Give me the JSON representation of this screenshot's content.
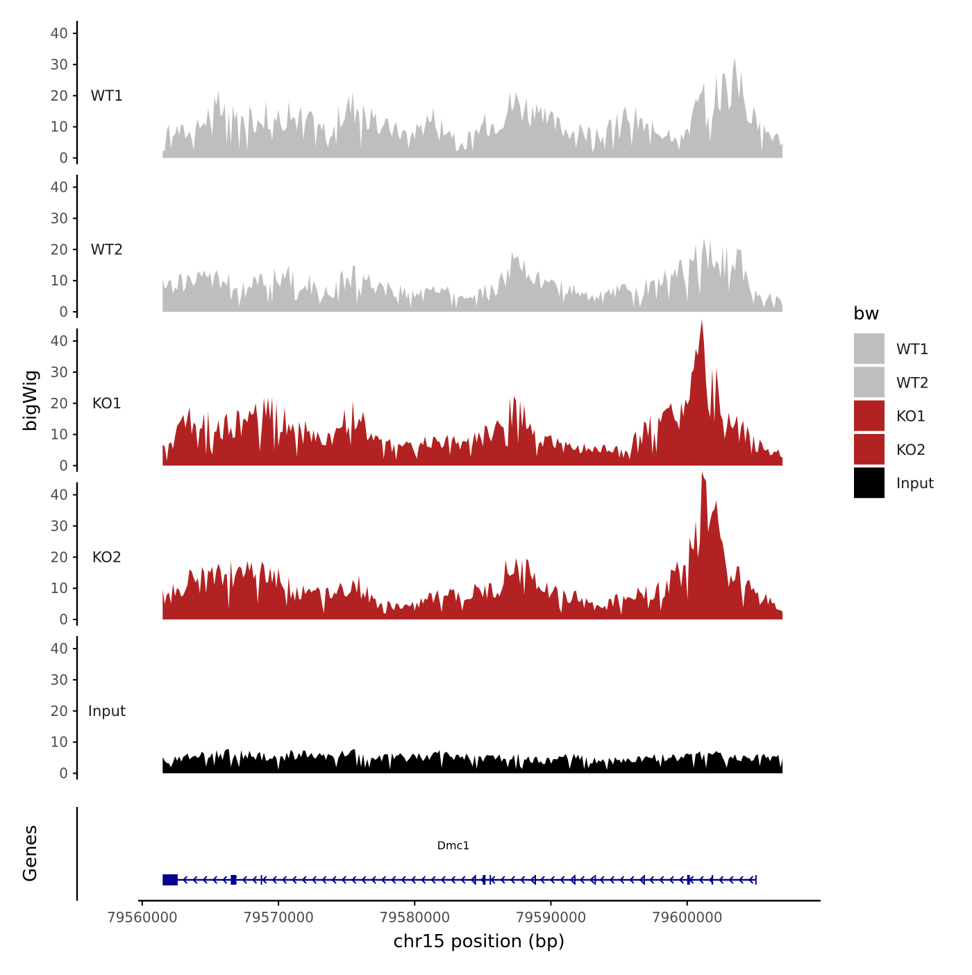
{
  "chart_data": {
    "type": "area",
    "title": "",
    "ylabel": "bigWig",
    "xlabel": "chr15 position (bp)",
    "xlim": [
      79559700,
      79609800
    ],
    "ylim": [
      0,
      42
    ],
    "y_ticks": [
      0,
      10,
      20,
      30,
      40
    ],
    "y_tick_labels": [
      "0",
      "10",
      "20",
      "30",
      "40"
    ],
    "x_ticks": [
      79560000,
      79570000,
      79580000,
      79590000,
      79600000
    ],
    "x_tick_labels": [
      "79560000",
      "79570000",
      "79580000",
      "79590000",
      "79600000"
    ],
    "x_positions": [
      79561500,
      79563500,
      79565500,
      79567500,
      79569500,
      79571500,
      79573500,
      79575500,
      79577500,
      79579500,
      79581500,
      79583500,
      79585500,
      79587500,
      79589500,
      79591500,
      79593500,
      79595500,
      79597500,
      79599500,
      79601500,
      79603500,
      79605500,
      79607000
    ],
    "legend": {
      "title": "bw",
      "position": "right",
      "entries": [
        {
          "label": "WT1",
          "color": "#bebebe"
        },
        {
          "label": "WT2",
          "color": "#bebebe"
        },
        {
          "label": "KO1",
          "color": "#b22222"
        },
        {
          "label": "KO2",
          "color": "#b22222"
        },
        {
          "label": "Input",
          "color": "#000000"
        }
      ]
    },
    "series": [
      {
        "name": "WT1",
        "color": "#bebebe",
        "values": [
          10,
          8,
          16,
          12,
          14,
          13,
          9,
          17,
          10,
          8,
          13,
          6,
          11,
          18,
          12,
          9,
          7,
          14,
          9,
          8,
          20,
          24,
          9,
          6
        ]
      },
      {
        "name": "WT2",
        "color": "#bebebe",
        "values": [
          8,
          10,
          11,
          7,
          13,
          10,
          6,
          12,
          8,
          6,
          7,
          5,
          7,
          15,
          9,
          7,
          5,
          7,
          8,
          13,
          18,
          16,
          5,
          4
        ]
      },
      {
        "name": "KO1",
        "color": "#b22222",
        "values": [
          5,
          15,
          12,
          14,
          17,
          11,
          8,
          16,
          7,
          6,
          8,
          7,
          10,
          17,
          8,
          6,
          5,
          6,
          13,
          16,
          38,
          12,
          6,
          4
        ]
      },
      {
        "name": "KO2",
        "color": "#b22222",
        "values": [
          7,
          12,
          13,
          15,
          14,
          9,
          8,
          11,
          5,
          4,
          7,
          8,
          9,
          17,
          9,
          7,
          4,
          7,
          9,
          14,
          37,
          13,
          7,
          3
        ]
      },
      {
        "name": "Input",
        "color": "#000000",
        "values": [
          4,
          5,
          6,
          6,
          5,
          6,
          5,
          6,
          5,
          5,
          6,
          5,
          5,
          5,
          4,
          5,
          4,
          4,
          5,
          5,
          6,
          5,
          5,
          5
        ]
      }
    ],
    "genes": {
      "label": "Genes",
      "name": "Dmc1",
      "strand": "-",
      "color": "#00008b",
      "start": 79561500,
      "end": 79605000,
      "exons": [
        [
          79561500,
          79562600
        ],
        [
          79566500,
          79566900
        ],
        [
          79568700,
          79568800
        ],
        [
          79584400,
          79584500
        ],
        [
          79585000,
          79585200
        ],
        [
          79585500,
          79585600
        ],
        [
          79588800,
          79588900
        ],
        [
          79591700,
          79591800
        ],
        [
          79593200,
          79593300
        ],
        [
          79596800,
          79596900
        ],
        [
          79600000,
          79600200
        ],
        [
          79601800,
          79601900
        ],
        [
          79605000,
          79605100
        ]
      ]
    }
  }
}
